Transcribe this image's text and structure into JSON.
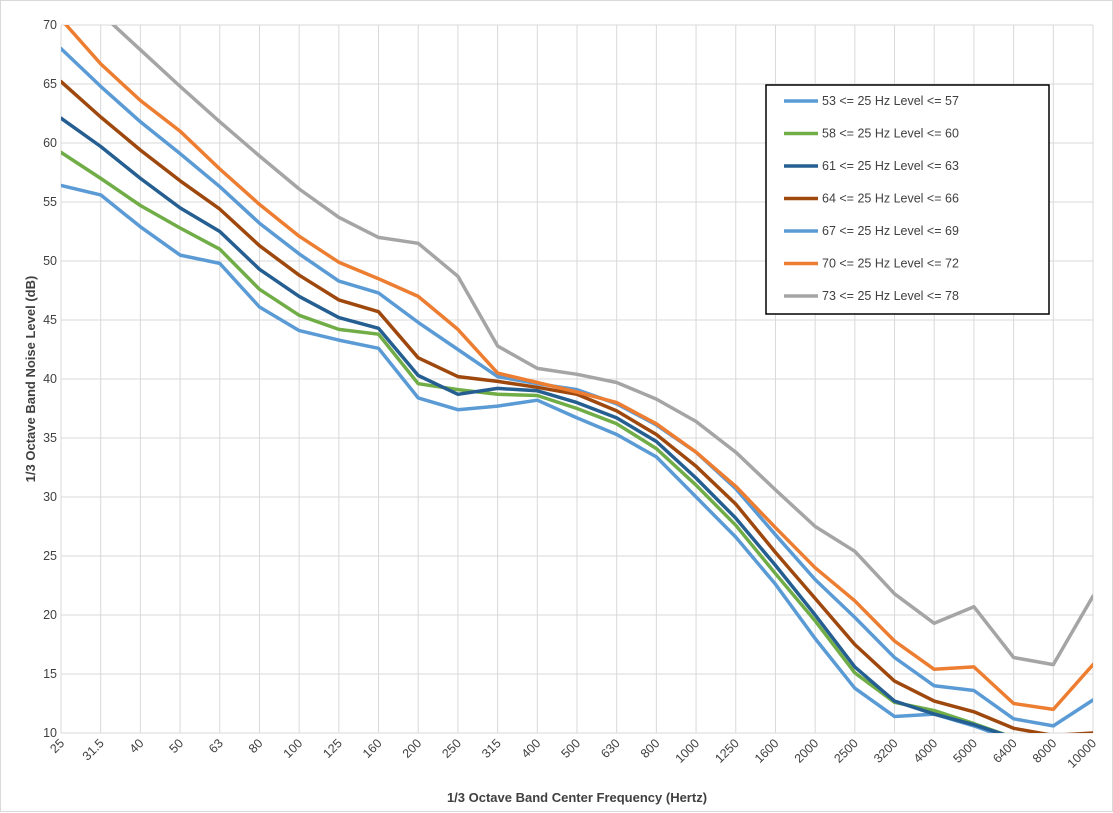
{
  "chart_data": {
    "type": "line",
    "xlabel": "1/3 Octave Band Center Frequency (Hertz)",
    "ylabel": "1/3 Octave Band Noise Level (dB)",
    "ylim": [
      10,
      70
    ],
    "yticks": [
      10,
      15,
      20,
      25,
      30,
      35,
      40,
      45,
      50,
      55,
      60,
      65,
      70
    ],
    "grid": true,
    "legend_position": "top-right",
    "categories": [
      "25",
      "31.5",
      "40",
      "50",
      "63",
      "80",
      "100",
      "125",
      "160",
      "200",
      "250",
      "315",
      "400",
      "500",
      "630",
      "800",
      "1000",
      "1250",
      "1600",
      "2000",
      "2500",
      "3200",
      "4000",
      "5000",
      "6400",
      "8000",
      "10000"
    ],
    "series": [
      {
        "name": "53 <= 25 Hz Level <= 57",
        "color": "#5b9bd5",
        "values": [
          56.4,
          55.6,
          52.9,
          50.5,
          49.8,
          46.1,
          44.1,
          43.3,
          42.6,
          38.4,
          37.4,
          37.7,
          38.2,
          36.7,
          35.3,
          33.4,
          30.0,
          26.6,
          22.6,
          18.0,
          13.8,
          11.4,
          11.6,
          10.6,
          9.4,
          9.0,
          9.0
        ]
      },
      {
        "name": "58 <= 25 Hz Level <= 60",
        "color": "#70ad47",
        "values": [
          59.2,
          57.0,
          54.7,
          52.8,
          51.0,
          47.6,
          45.4,
          44.2,
          43.8,
          39.6,
          39.1,
          38.7,
          38.6,
          37.5,
          36.2,
          34.1,
          31.0,
          27.6,
          23.5,
          19.5,
          15.1,
          12.6,
          11.9,
          10.8,
          9.6,
          9.0,
          9.0
        ]
      },
      {
        "name": "61 <= 25 Hz Level <= 63",
        "color": "#255e91",
        "values": [
          62.1,
          59.7,
          57.0,
          54.5,
          52.5,
          49.3,
          47.0,
          45.2,
          44.3,
          40.3,
          38.7,
          39.2,
          39.0,
          38.0,
          36.7,
          34.7,
          31.6,
          28.2,
          24.2,
          20.0,
          15.6,
          12.7,
          11.6,
          10.7,
          9.6,
          9.0,
          9.0
        ]
      },
      {
        "name": "64 <= 25 Hz Level <= 66",
        "color": "#9e480e",
        "values": [
          65.2,
          62.2,
          59.4,
          56.8,
          54.4,
          51.3,
          48.8,
          46.7,
          45.7,
          41.8,
          40.2,
          39.8,
          39.3,
          38.7,
          37.3,
          35.3,
          32.6,
          29.4,
          25.3,
          21.4,
          17.5,
          14.4,
          12.7,
          11.8,
          10.4,
          9.8,
          10.0
        ]
      },
      {
        "name": "67 <= 25 Hz Level <= 69",
        "color": "#5b9bd5",
        "values": [
          68.0,
          64.8,
          61.8,
          59.1,
          56.3,
          53.2,
          50.6,
          48.3,
          47.3,
          44.8,
          42.5,
          40.2,
          39.6,
          39.1,
          37.9,
          36.1,
          33.8,
          30.7,
          26.8,
          23.0,
          19.8,
          16.4,
          14.0,
          13.6,
          11.2,
          10.6,
          12.8
        ]
      },
      {
        "name": "70 <= 25 Hz Level <= 72",
        "color": "#ed7d31",
        "values": [
          70.5,
          66.7,
          63.6,
          61.0,
          57.8,
          54.8,
          52.1,
          49.9,
          48.5,
          47.0,
          44.2,
          40.5,
          39.7,
          38.9,
          38.0,
          36.2,
          33.8,
          30.9,
          27.4,
          24.0,
          21.2,
          17.8,
          15.4,
          15.6,
          12.5,
          12.0,
          15.8
        ]
      },
      {
        "name": "73 <= 25 Hz Level <= 78",
        "color": "#a5a5a5",
        "values": [
          74.0,
          71.0,
          67.9,
          64.8,
          61.8,
          58.9,
          56.1,
          53.7,
          52.0,
          51.5,
          48.7,
          42.8,
          40.9,
          40.4,
          39.7,
          38.3,
          36.4,
          33.8,
          30.6,
          27.5,
          25.4,
          21.8,
          19.3,
          20.7,
          16.4,
          15.8,
          21.6
        ]
      }
    ]
  }
}
